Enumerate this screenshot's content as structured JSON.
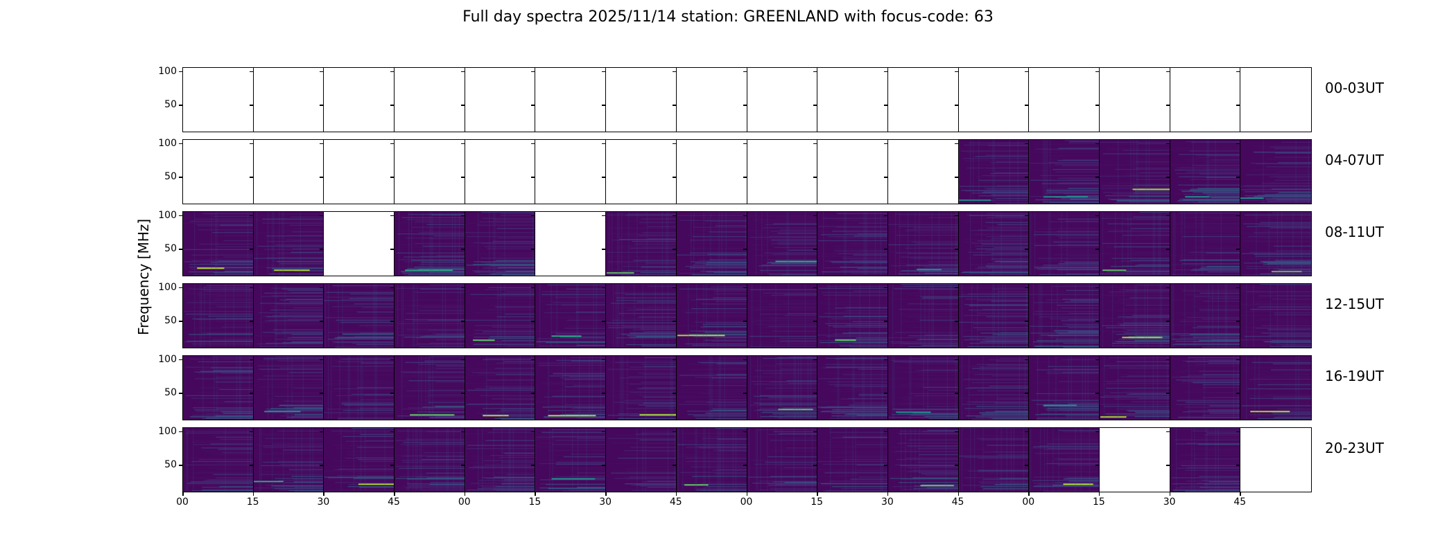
{
  "chart_data": {
    "type": "heatmap",
    "title": "Full day spectra 2025/11/14 station: GREENLAND with focus-code: 63",
    "ylabel": "Frequency [MHz]",
    "xlabel": "",
    "ylim": [
      9,
      106
    ],
    "yticks": [
      "100",
      "50"
    ],
    "xticks": [
      "00",
      "15",
      "30",
      "45",
      "00",
      "15",
      "30",
      "45",
      "00",
      "15",
      "30",
      "45",
      "00",
      "15",
      "30",
      "45"
    ],
    "rows": [
      {
        "label": "00-03UT",
        "has_data": [
          0,
          0,
          0,
          0,
          0,
          0,
          0,
          0,
          0,
          0,
          0,
          0,
          0,
          0,
          0,
          0
        ]
      },
      {
        "label": "04-07UT",
        "has_data": [
          0,
          0,
          0,
          0,
          0,
          0,
          0,
          0,
          0,
          0,
          0,
          1,
          1,
          1,
          1,
          1
        ]
      },
      {
        "label": "08-11UT",
        "has_data": [
          1,
          1,
          0,
          1,
          1,
          0,
          1,
          1,
          1,
          1,
          1,
          1,
          1,
          1,
          1,
          1
        ]
      },
      {
        "label": "12-15UT",
        "has_data": [
          1,
          1,
          1,
          1,
          1,
          1,
          1,
          1,
          1,
          1,
          1,
          1,
          1,
          1,
          1,
          1
        ]
      },
      {
        "label": "16-19UT",
        "has_data": [
          1,
          1,
          1,
          1,
          1,
          1,
          1,
          1,
          1,
          1,
          1,
          1,
          1,
          1,
          1,
          1
        ]
      },
      {
        "label": "20-23UT",
        "has_data": [
          1,
          1,
          1,
          1,
          1,
          1,
          1,
          1,
          1,
          1,
          1,
          1,
          1,
          0,
          1,
          0
        ]
      }
    ],
    "colormap": "viridis"
  }
}
